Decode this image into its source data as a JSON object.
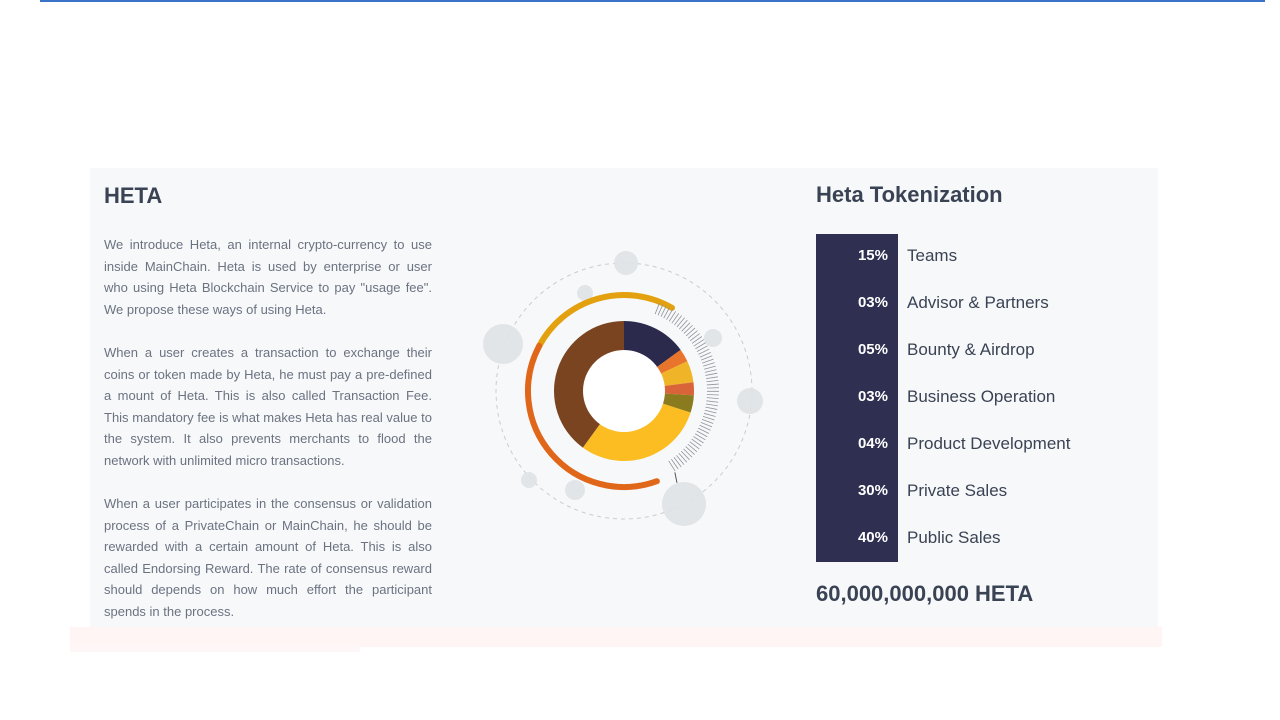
{
  "heta": {
    "title": "HETA",
    "paragraphs": [
      "We introduce Heta, an internal crypto-currency to use inside MainChain. Heta is used by enterprise or user who using Heta Blockchain Service to pay \"usage fee\". We propose these ways of using Heta.",
      "When a user creates a transaction to exchange their coins or token made by Heta, he must pay a pre-defined a mount of Heta. This is also called Transaction Fee. This mandatory fee is what makes Heta has real value to the system. It also prevents merchants to flood the network with unlimited micro transactions.",
      "When a user participates in the consensus or validation process of a PrivateChain or MainChain, he should be rewarded with a certain amount of Heta. This is also called Endorsing Reward. The rate of consensus reward should depends on how much effort the participant spends in the process."
    ]
  },
  "tokenization": {
    "title": "Heta Tokenization",
    "rows": [
      {
        "pct": "15%",
        "label": "Teams"
      },
      {
        "pct": "03%",
        "label": "Advisor & Partners"
      },
      {
        "pct": "05%",
        "label": "Bounty & Airdrop"
      },
      {
        "pct": "03%",
        "label": "Business Operation"
      },
      {
        "pct": "04%",
        "label": "Product Development"
      },
      {
        "pct": "30%",
        "label": "Private Sales"
      },
      {
        "pct": "40%",
        "label": "Public Sales"
      }
    ],
    "total": "60,000,000,000 HETA"
  },
  "colors": {
    "panel_bg": "#f7f8fa",
    "accent_dark": "#2f2f52",
    "heading": "#3a4354",
    "body_text": "#6b7280"
  },
  "chart_data": {
    "type": "pie",
    "categories": [
      "Teams",
      "Advisor & Partners",
      "Bounty & Airdrop",
      "Business Operation",
      "Product Development",
      "Private Sales",
      "Public Sales"
    ],
    "values": [
      15,
      3,
      5,
      3,
      4,
      30,
      40
    ],
    "colors": [
      "#2b2a4c",
      "#e8752b",
      "#f0b429",
      "#d9643a",
      "#8a7b1e",
      "#fbbd22",
      "#7a4420"
    ]
  }
}
